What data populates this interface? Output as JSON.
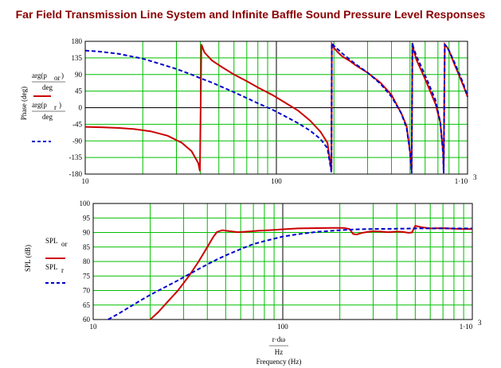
{
  "title": "Far Field Transmission Line System and Infinite Baffle Sound Pressure Level Responses",
  "colors": {
    "red": "#cc0000",
    "blue": "#0000cc",
    "grid": "#00c000",
    "title": "#8b0000"
  },
  "chart_data": [
    {
      "type": "line",
      "ylabel": "Phase (deg)",
      "xscale": "log",
      "xlim": [
        10,
        1000
      ],
      "ylim": [
        -180,
        180
      ],
      "yticks": [
        "180",
        "135",
        "90",
        "45",
        "0",
        "-45",
        "-90",
        "-135",
        "-180"
      ],
      "xticks": [
        "10",
        "100",
        "1·10"
      ],
      "xtick_sup": "3",
      "legend": {
        "red_num": "arg(p",
        "red_sub": "or",
        "red_den": "deg",
        "blue_num": "arg(p",
        "blue_sub": "r",
        "blue_den": "deg"
      },
      "series": [
        {
          "color": "red",
          "x": [
            10,
            12,
            15,
            18,
            22,
            27,
            32,
            36,
            39,
            39.8,
            40.5,
            42,
            46,
            52,
            60,
            70,
            80,
            95,
            110,
            130,
            150,
            170,
            185,
            194,
            195,
            200,
            210,
            220,
            240,
            260,
            300,
            350,
            400,
            450,
            480,
            500,
            510,
            515,
            520,
            540,
            580,
            620,
            680,
            720,
            745,
            750,
            760,
            780,
            800,
            850,
            900,
            950,
            1000
          ],
          "y": [
            -52,
            -53,
            -55,
            -58,
            -64,
            -76,
            -95,
            -118,
            -150,
            -172,
            172,
            150,
            128,
            110,
            90,
            72,
            55,
            35,
            15,
            -8,
            -35,
            -65,
            -95,
            -172,
            172,
            162,
            150,
            140,
            128,
            115,
            95,
            68,
            35,
            -15,
            -50,
            -120,
            -170,
            176,
            160,
            130,
            95,
            60,
            10,
            -40,
            -120,
            -170,
            172,
            165,
            155,
            120,
            90,
            60,
            30
          ]
        },
        {
          "color": "blue",
          "x": [
            10,
            12,
            15,
            20,
            25,
            30,
            36,
            40,
            45,
            50,
            60,
            70,
            80,
            95,
            110,
            130,
            150,
            170,
            185,
            194,
            195,
            200,
            210,
            220,
            240,
            260,
            300,
            350,
            400,
            450,
            480,
            500,
            510,
            515,
            520,
            540,
            580,
            620,
            680,
            720,
            745,
            750,
            760,
            780,
            800,
            850,
            900,
            950,
            1000
          ],
          "y": [
            155,
            152,
            146,
            133,
            118,
            105,
            90,
            80,
            70,
            60,
            42,
            26,
            12,
            -5,
            -22,
            -42,
            -62,
            -85,
            -110,
            -175,
            175,
            168,
            158,
            148,
            132,
            118,
            95,
            65,
            30,
            -15,
            -55,
            -120,
            -178,
            176,
            165,
            140,
            105,
            70,
            20,
            -40,
            -125,
            -178,
            170,
            164,
            155,
            125,
            95,
            65,
            30
          ]
        }
      ]
    },
    {
      "type": "line",
      "ylabel": "SPL (dB)",
      "xlabel": "Frequency (Hz)",
      "xlabel_num": "r·dω",
      "xlabel_den": "Hz",
      "xscale": "log",
      "xlim": [
        10,
        1000
      ],
      "ylim": [
        60,
        100
      ],
      "yticks": [
        "100",
        "95",
        "90",
        "85",
        "80",
        "75",
        "70",
        "65",
        "60"
      ],
      "xticks": [
        "10",
        "100",
        "1·10"
      ],
      "xtick_sup": "3",
      "legend": {
        "red": "SPL",
        "red_sub": "or",
        "blue": "SPL",
        "blue_sub": "r"
      },
      "series": [
        {
          "color": "red",
          "x": [
            20,
            22,
            25,
            28,
            32,
            36,
            40,
            43,
            45,
            48,
            52,
            58,
            65,
            75,
            85,
            100,
            120,
            150,
            180,
            210,
            225,
            235,
            245,
            260,
            280,
            300,
            330,
            360,
            400,
            430,
            460,
            480,
            500,
            540,
            600,
            700,
            800,
            900,
            1000
          ],
          "y": [
            60,
            62.5,
            66.5,
            70,
            75,
            80,
            85,
            88.5,
            90.2,
            90.8,
            90.5,
            90.1,
            90.3,
            90.6,
            90.8,
            91.1,
            91.4,
            91.5,
            91.6,
            91.6,
            91.2,
            89.5,
            89.3,
            89.8,
            90.2,
            90.4,
            90.3,
            90.1,
            90.3,
            90.2,
            89.9,
            90.0,
            92.3,
            91.8,
            91.4,
            91.5,
            91.3,
            91.2,
            91.2
          ]
        },
        {
          "color": "blue",
          "x": [
            12,
            14,
            16,
            18,
            20,
            24,
            28,
            32,
            36,
            40,
            45,
            50,
            60,
            70,
            80,
            100,
            120,
            150,
            200,
            250,
            300,
            400,
            500,
            600,
            700,
            800,
            900,
            1000
          ],
          "y": [
            60,
            62.5,
            64.8,
            66.8,
            68.5,
            71.2,
            73.5,
            75.6,
            77.4,
            79,
            80.7,
            82.1,
            84.3,
            86,
            87,
            88.6,
            89.4,
            90.2,
            90.8,
            91.1,
            91.2,
            91.3,
            91.4,
            91.4,
            91.4,
            91.4,
            91.4,
            91.4
          ]
        }
      ]
    }
  ]
}
